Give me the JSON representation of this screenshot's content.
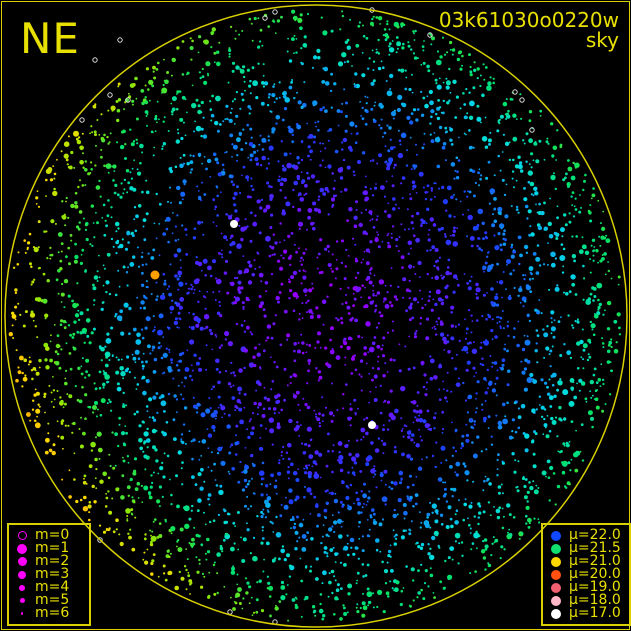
{
  "corner_label": "NE",
  "title": "03k61030o0220w",
  "subtitle": "sky",
  "chart_data": {
    "type": "scatter",
    "description_note": "",
    "magnitude_legend": [
      {
        "label": "m=0",
        "style": "open"
      },
      {
        "label": "m=1",
        "size": 5
      },
      {
        "label": "m=2",
        "size": 4.5
      },
      {
        "label": "m=3",
        "size": 4
      },
      {
        "label": "m=4",
        "size": 3
      },
      {
        "label": "m=5",
        "size": 2.5
      },
      {
        "label": "m=6",
        "size": 1.5
      }
    ],
    "brightness_legend": [
      {
        "label": "μ=22.0",
        "color": "#1048ff"
      },
      {
        "label": "μ=21.5",
        "color": "#10e070"
      },
      {
        "label": "μ=21.0",
        "color": "#ffd800"
      },
      {
        "label": "μ=20.0",
        "color": "#ff5010"
      },
      {
        "label": "μ=19.0",
        "color": "#f06070"
      },
      {
        "label": "μ=18.0",
        "color": "#ffb8c8"
      },
      {
        "label": "μ=17.0",
        "color": "#ffffff"
      }
    ]
  },
  "colors": {
    "frame": "#d8d000",
    "text": "#e8e000",
    "marker": "#ff00ff"
  }
}
